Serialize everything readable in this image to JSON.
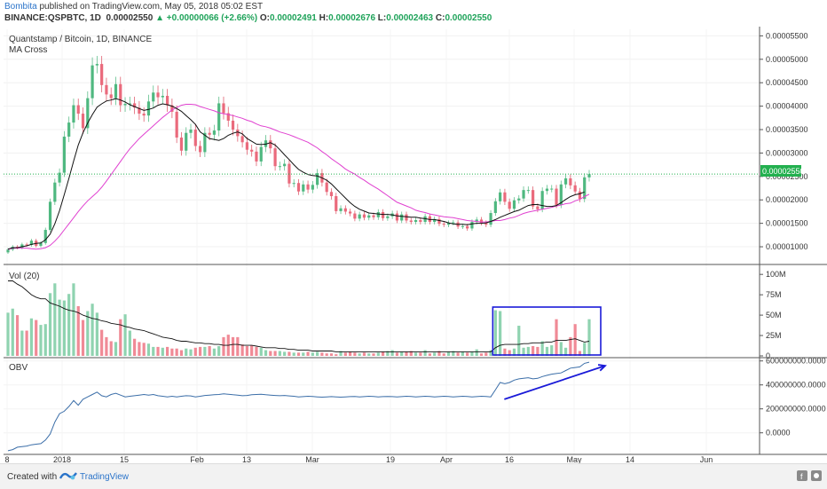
{
  "header": {
    "author": "Bombita",
    "published_text": "published on TradingView.com, May 05, 2018 05:02 EST",
    "symbol": "BINANCE:QSPBTC, 1D",
    "last": "0.00002550",
    "change_arrow": "▲",
    "change": "+0.00000066 (+2.66%)",
    "o_label": "O:",
    "o_val": "0.00002491",
    "h_label": "H:",
    "h_val": "0.00002676",
    "l_label": "L:",
    "l_val": "0.00002463",
    "c_label": "C:",
    "c_val": "0.00002550"
  },
  "main_pane": {
    "title": "Quantstamp / Bitcoin, 1D, BINANCE",
    "indicator": "MA Cross",
    "price_tag": "0.00002550"
  },
  "vol_pane": {
    "title": "Vol (20)"
  },
  "obv_pane": {
    "title": "OBV"
  },
  "footer": {
    "created_with": "Created with",
    "brand": "TradingView"
  },
  "colors": {
    "up": "#8fd3b0",
    "down": "#f08a96",
    "ma_fast": "#111111",
    "ma_slow": "#e040d0",
    "obv": "#3b6ea8",
    "annotation": "#1a1ad8"
  },
  "chart_data": {
    "type": "candlestick",
    "price_axis": {
      "ticks": [
        "0.00005500",
        "0.00005000",
        "0.00004500",
        "0.00004000",
        "0.00003500",
        "0.00003000",
        "0.00002500",
        "0.00002000",
        "0.00001500",
        "0.00001000"
      ],
      "range": [
        6.6e-06,
        5.64e-05
      ]
    },
    "volume_axis": {
      "ticks": [
        "100M",
        "75M",
        "50M",
        "25M",
        "0"
      ],
      "range": [
        0,
        110000000
      ]
    },
    "obv_axis": {
      "ticks": [
        "600000000.0000",
        "400000000.0000",
        "200000000.0000",
        "0.0000"
      ],
      "range": [
        -180000000,
        620000000
      ]
    },
    "x_ticks": [
      "8",
      "2018",
      "15",
      "Feb",
      "13",
      "Mar",
      "19",
      "Apr",
      "16",
      "May",
      "14",
      "Jun"
    ],
    "price_start": 8.8e-06,
    "ma_fast_values": [
      9.5e-06,
      9.8e-06,
      9.8e-06,
      1e-05,
      1.02e-05,
      1.05e-05,
      1.07e-05,
      1.08e-05,
      1.15e-05,
      1.27e-05,
      1.49e-05,
      1.77e-05,
      2.11e-05,
      2.46e-05,
      2.83e-05,
      3.17e-05,
      3.43e-05,
      3.64e-05,
      3.82e-05,
      3.98e-05,
      4.05e-05,
      4.11e-05,
      4.13e-05,
      4.16e-05,
      4.13e-05,
      4.09e-05,
      4.03e-05,
      3.99e-05,
      3.95e-05,
      3.91e-05,
      3.93e-05,
      3.96e-05,
      4.02e-05,
      4.05e-05,
      4.03e-05,
      4e-05,
      3.95e-05,
      3.89e-05,
      3.8e-05,
      3.71e-05,
      3.61e-05,
      3.45e-05,
      3.38e-05,
      3.31e-05,
      3.29e-05,
      3.27e-05,
      3.31e-05,
      3.38e-05,
      3.42e-05,
      3.45e-05,
      3.41e-05,
      3.31e-05,
      3.25e-05,
      3.19e-05,
      3.18e-05,
      3.19e-05,
      3.22e-05,
      3.17e-05,
      3.07e-05,
      2.96e-05,
      2.86e-05,
      2.75e-05,
      2.65e-05,
      2.59e-05,
      2.54e-05,
      2.52e-05,
      2.51e-05,
      2.47e-05,
      2.42e-05,
      2.34e-05,
      2.24e-05,
      2.14e-05,
      2.04e-05,
      1.94e-05,
      1.86e-05,
      1.8e-05,
      1.76e-05,
      1.72e-05,
      1.71e-05,
      1.7e-05,
      1.69e-05,
      1.69e-05,
      1.68e-05,
      1.66e-05,
      1.65e-05,
      1.64e-05,
      1.63e-05,
      1.63e-05,
      1.61e-05,
      1.6e-05,
      1.58e-05,
      1.58e-05,
      1.56e-05,
      1.54e-05,
      1.51e-05,
      1.49e-05,
      1.48e-05,
      1.48e-05,
      1.47e-05,
      1.49e-05,
      1.5e-05,
      1.5e-05,
      1.51e-05,
      1.54e-05,
      1.58e-05,
      1.63e-05,
      1.67e-05,
      1.71e-05,
      1.75e-05,
      1.78e-05,
      1.83e-05,
      1.88e-05,
      1.9e-05,
      1.9e-05,
      1.88e-05,
      1.86e-05,
      1.86e-05,
      1.88e-05,
      1.94e-05,
      2.01e-05,
      2.07e-05,
      2.11e-05,
      2.13e-05,
      2.17e-05
    ],
    "ma_slow_values": [
      9.4e-06,
      9.7e-06,
      9.7e-06,
      9.7e-06,
      9.7e-06,
      9.6e-06,
      9.5e-06,
      9.6e-06,
      9.8e-06,
      1.03e-05,
      1.12e-05,
      1.23e-05,
      1.36e-05,
      1.49e-05,
      1.62e-05,
      1.75e-05,
      1.87e-05,
      1.98e-05,
      2.07e-05,
      2.16e-05,
      2.27e-05,
      2.4e-05,
      2.54e-05,
      2.68e-05,
      2.82e-05,
      2.96e-05,
      3.09e-05,
      3.2e-05,
      3.31e-05,
      3.4e-05,
      3.49e-05,
      3.58e-05,
      3.67e-05,
      3.76e-05,
      3.84e-05,
      3.92e-05,
      3.97e-05,
      4.02e-05,
      4.04e-05,
      4.04e-05,
      4.03e-05,
      3.99e-05,
      3.96e-05,
      3.93e-05,
      3.9e-05,
      3.86e-05,
      3.84e-05,
      3.82e-05,
      3.8e-05,
      3.77e-05,
      3.74e-05,
      3.7e-05,
      3.67e-05,
      3.62e-05,
      3.58e-05,
      3.56e-05,
      3.53e-05,
      3.49e-05,
      3.45e-05,
      3.42e-05,
      3.39e-05,
      3.35e-05,
      3.31e-05,
      3.27e-05,
      3.23e-05,
      3.17e-05,
      3.11e-05,
      3.03e-05,
      2.96e-05,
      2.88e-05,
      2.81e-05,
      2.74e-05,
      2.66e-05,
      2.6e-05,
      2.55e-05,
      2.48e-05,
      2.42e-05,
      2.35e-05,
      2.29e-05,
      2.23e-05,
      2.16e-05,
      2.09e-05,
      2.02e-05,
      1.95e-05,
      1.91e-05,
      1.87e-05,
      1.83e-05,
      1.78e-05,
      1.75e-05,
      1.73e-05,
      1.7e-05,
      1.68e-05,
      1.66e-05,
      1.64e-05,
      1.63e-05,
      1.62e-05,
      1.6e-05,
      1.58e-05,
      1.56e-05,
      1.55e-05,
      1.54e-05,
      1.53e-05,
      1.53e-05,
      1.54e-05,
      1.56e-05,
      1.56e-05,
      1.58e-05,
      1.61e-05,
      1.63e-05,
      1.67e-05,
      1.71e-05,
      1.74e-05,
      1.76e-05,
      1.78e-05,
      1.8e-05,
      1.82e-05,
      1.84e-05,
      1.87e-05,
      1.89e-05,
      1.92e-05,
      1.93e-05,
      1.98e-05,
      2.01e-05,
      2.07e-05,
      2.12e-05
    ],
    "close_values": [
      9.4e-06,
      1e-05,
      9.8e-06,
      1.05e-05,
      1.04e-05,
      1.13e-05,
      1.02e-05,
      1.08e-05,
      1.36e-05,
      1.96e-05,
      2.37e-05,
      2.58e-05,
      3.35e-05,
      3.65e-05,
      4.02e-05,
      3.84e-05,
      3.53e-05,
      4.17e-05,
      4.87e-05,
      4.9e-05,
      4.45e-05,
      4.25e-05,
      4.17e-05,
      4.47e-05,
      4.02e-05,
      4.05e-05,
      4.06e-05,
      3.97e-05,
      3.84e-05,
      3.8e-05,
      4.1e-05,
      4.29e-05,
      4.19e-05,
      4.22e-05,
      4.02e-05,
      3.88e-05,
      3.33e-05,
      3.05e-05,
      3.43e-05,
      3.5e-05,
      3.15e-05,
      3.02e-05,
      3.43e-05,
      3.39e-05,
      3.48e-05,
      4.06e-05,
      3.85e-05,
      3.69e-05,
      3.5e-05,
      3.36e-05,
      3.23e-05,
      3.07e-05,
      3.03e-05,
      2.82e-05,
      3.13e-05,
      3.27e-05,
      3.1e-05,
      2.72e-05,
      2.72e-05,
      2.77e-05,
      2.35e-05,
      2.36e-05,
      2.18e-05,
      2.33e-05,
      2.22e-05,
      2.32e-05,
      2.57e-05,
      2.37e-05,
      2.17e-05,
      2.08e-05,
      1.76e-05,
      1.82e-05,
      1.75e-05,
      1.71e-05,
      1.6e-05,
      1.69e-05,
      1.62e-05,
      1.67e-05,
      1.63e-05,
      1.74e-05,
      1.61e-05,
      1.65e-05,
      1.71e-05,
      1.56e-05,
      1.69e-05,
      1.56e-05,
      1.53e-05,
      1.57e-05,
      1.53e-05,
      1.65e-05,
      1.53e-05,
      1.59e-05,
      1.49e-05,
      1.47e-05,
      1.51e-05,
      1.52e-05,
      1.43e-05,
      1.44e-05,
      1.39e-05,
      1.53e-05,
      1.58e-05,
      1.51e-05,
      1.47e-05,
      1.72e-05,
      1.97e-05,
      2.16e-05,
      1.96e-05,
      1.81e-05,
      1.99e-05,
      2.03e-05,
      2.21e-05,
      2.21e-05,
      1.86e-05,
      1.8e-05,
      2.19e-05,
      2.24e-05,
      2.24e-05,
      1.89e-05,
      2.33e-05,
      2.46e-05,
      2.31e-05,
      2.18e-05,
      2.02e-05,
      2.48e-05,
      2.55e-05
    ],
    "volume_values": [
      53,
      58,
      50,
      31,
      31,
      46,
      44,
      38,
      39,
      77,
      89,
      69,
      68,
      76,
      89,
      61,
      44,
      55,
      64,
      53,
      32,
      23,
      18,
      17,
      45,
      51,
      31,
      21,
      17,
      16,
      15,
      11,
      11,
      10,
      11,
      9,
      9,
      7,
      9,
      8,
      10,
      11,
      11,
      12,
      9,
      12,
      23,
      26,
      23,
      23,
      14,
      12,
      13,
      11,
      10,
      7,
      6,
      6,
      6,
      5,
      5,
      4,
      4,
      4,
      5,
      4,
      5,
      4,
      3,
      3,
      2,
      6,
      4,
      5,
      4,
      3,
      4,
      3,
      3,
      4,
      5,
      6,
      7,
      4,
      5,
      5,
      6,
      4,
      4,
      7,
      3,
      4,
      6,
      3,
      5,
      6,
      4,
      5,
      4,
      5,
      8,
      3,
      4,
      7,
      56,
      55,
      9,
      7,
      9,
      37,
      10,
      11,
      12,
      11,
      18,
      11,
      13,
      45,
      17,
      10,
      23,
      39,
      6,
      16,
      45
    ],
    "volume_ma_values": [
      92,
      92,
      88,
      85,
      80,
      75,
      72,
      70,
      70,
      65,
      63,
      61,
      58,
      56,
      55,
      53,
      50,
      48,
      46,
      45,
      43,
      42,
      40,
      39,
      38,
      36,
      35,
      33,
      32,
      31,
      29,
      27,
      25,
      23,
      22,
      21,
      19,
      18,
      18,
      17,
      16,
      16,
      15,
      15,
      14,
      14,
      13,
      13,
      14,
      14,
      13,
      13,
      13,
      12,
      11,
      10,
      10,
      10,
      9,
      9,
      8,
      8,
      7,
      7,
      7,
      6,
      6,
      6,
      6,
      6,
      5,
      5,
      5,
      5,
      5,
      5,
      5,
      5,
      5,
      5,
      5,
      5,
      5,
      5,
      5,
      5,
      5,
      5,
      5,
      5,
      5,
      5,
      5,
      5,
      5,
      5,
      5,
      5,
      5,
      5,
      5,
      5,
      5,
      5,
      10,
      13,
      14,
      14,
      14,
      14,
      15,
      15,
      16,
      16,
      16,
      17,
      17,
      19,
      19,
      19,
      20,
      21,
      19,
      17,
      18
    ],
    "obv_values": [
      -150,
      -140,
      -120,
      -115,
      -110,
      -100,
      -95,
      -90,
      -60,
      -10,
      90,
      160,
      180,
      220,
      270,
      230,
      280,
      300,
      320,
      340,
      310,
      300,
      320,
      330,
      315,
      300,
      305,
      310,
      315,
      320,
      315,
      320,
      310,
      305,
      300,
      305,
      300,
      305,
      310,
      308,
      300,
      305,
      312,
      315,
      318,
      320,
      325,
      322,
      318,
      315,
      310,
      312,
      318,
      320,
      322,
      318,
      315,
      312,
      310,
      312,
      308,
      305,
      300,
      302,
      305,
      303,
      300,
      298,
      300,
      302,
      300,
      298,
      300,
      302,
      303,
      300,
      302,
      305,
      303,
      300,
      302,
      304,
      302,
      300,
      302,
      305,
      303,
      300,
      302,
      305,
      303,
      300,
      302,
      305,
      303,
      300,
      302,
      305,
      303,
      300,
      302,
      305,
      303,
      300,
      360,
      420,
      410,
      420,
      440,
      450,
      455,
      460,
      450,
      455,
      470,
      480,
      490,
      495,
      500,
      520,
      540,
      545,
      550,
      580,
      590
    ],
    "annotations": [
      {
        "type": "rectangle",
        "pane": "volume",
        "from_index": 104,
        "to_index": 124
      },
      {
        "type": "arrow",
        "pane": "obv",
        "from_index": 104,
        "to_index": 126,
        "from_value": 280,
        "to_value": 560
      }
    ]
  }
}
